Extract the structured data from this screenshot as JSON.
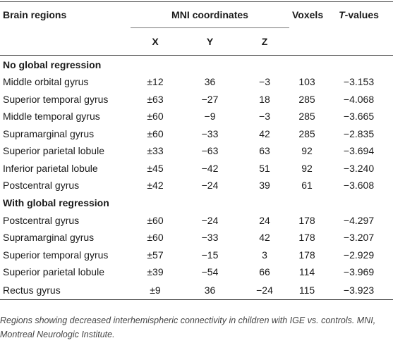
{
  "table": {
    "header": {
      "region": "Brain regions",
      "mni": "MNI coordinates",
      "coords": [
        "X",
        "Y",
        "Z"
      ],
      "voxels": "Voxels",
      "t_values": "T-values"
    },
    "sections": [
      {
        "title": "No global regression",
        "rows": [
          [
            "Middle orbital gyrus",
            "±12",
            "36",
            "−3",
            "103",
            "−3.153"
          ],
          [
            "Superior temporal gyrus",
            "±63",
            "−27",
            "18",
            "285",
            "−4.068"
          ],
          [
            "Middle temporal gyrus",
            "±60",
            "−9",
            "−3",
            "285",
            "−3.665"
          ],
          [
            "Supramarginal gyrus",
            "±60",
            "−33",
            "42",
            "285",
            "−2.835"
          ],
          [
            "Superior parietal lobule",
            "±33",
            "−63",
            "63",
            "92",
            "−3.694"
          ],
          [
            "Inferior parietal lobule",
            "±45",
            "−42",
            "51",
            "92",
            "−3.240"
          ],
          [
            "Postcentral gyrus",
            "±42",
            "−24",
            "39",
            "61",
            "−3.608"
          ]
        ]
      },
      {
        "title": "With global regression",
        "rows": [
          [
            "Postcentral gyrus",
            "±60",
            "−24",
            "24",
            "178",
            "−4.297"
          ],
          [
            "Supramarginal gyrus",
            "±60",
            "−33",
            "42",
            "178",
            "−3.207"
          ],
          [
            "Superior temporal gyrus",
            "±57",
            "−15",
            "3",
            "178",
            "−2.929"
          ],
          [
            "Superior parietal lobule",
            "±39",
            "−54",
            "66",
            "114",
            "−3.969"
          ],
          [
            "Rectus gyrus",
            "±9",
            "36",
            "−24",
            "115",
            "−3.923"
          ]
        ]
      }
    ]
  },
  "note": "Regions showing decreased interhemispheric connectivity in children with IGE vs. controls. MNI, Montreal Neurologic Institute."
}
